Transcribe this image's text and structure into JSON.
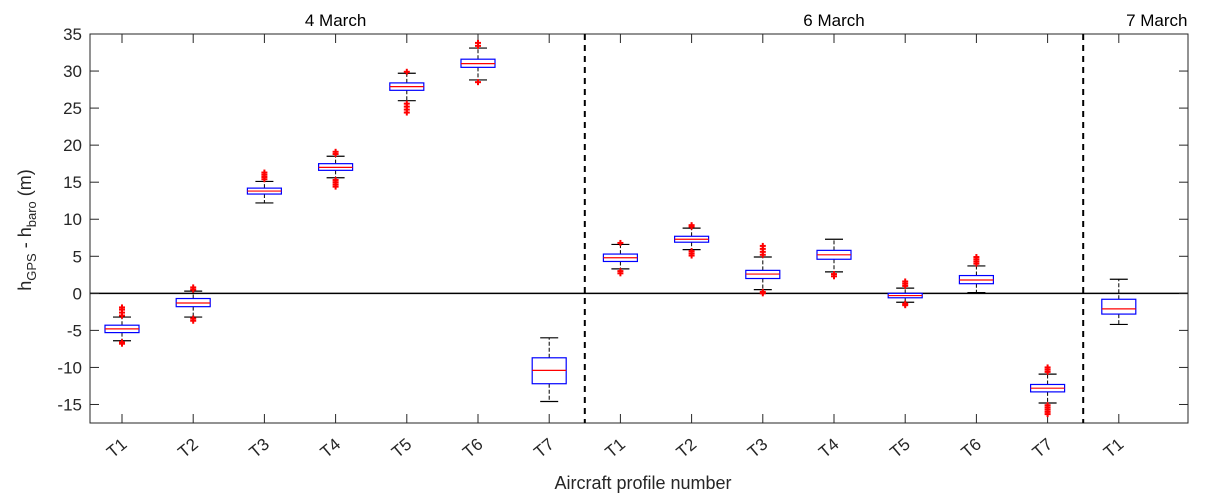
{
  "chart_data": {
    "type": "box",
    "xlabel": "Aircraft profile number",
    "ylabel_main": "h",
    "ylabel_sub1": "GPS",
    "ylabel_mid": " - h",
    "ylabel_sub2": "baro",
    "ylabel_unit": "(m)",
    "ylim": [
      -17.5,
      35
    ],
    "yticks": [
      -15,
      -10,
      -5,
      0,
      5,
      10,
      15,
      20,
      25,
      30,
      35
    ],
    "grid": false,
    "zero_line": true,
    "categories": [
      "T1",
      "T2",
      "T3",
      "T4",
      "T5",
      "T6",
      "T7",
      "T1",
      "T2",
      "T3",
      "T4",
      "T5",
      "T6",
      "T7",
      "T1"
    ],
    "groups": [
      {
        "label": "4 March",
        "count": 7
      },
      {
        "label": "6 March",
        "count": 7
      },
      {
        "label": "7 March",
        "count": 1
      }
    ],
    "boxes": [
      {
        "median": -4.8,
        "q1": -5.3,
        "q3": -4.3,
        "whisker_low": -6.4,
        "whisker_high": -3.2,
        "outliers_low": [
          -6.6,
          -6.8
        ],
        "outliers_high": [
          -3.0,
          -2.6,
          -2.2,
          -1.9
        ]
      },
      {
        "median": -1.3,
        "q1": -1.8,
        "q3": -0.7,
        "whisker_low": -3.2,
        "whisker_high": 0.3,
        "outliers_low": [
          -3.4,
          -3.7
        ],
        "outliers_high": [
          0.5,
          0.8
        ]
      },
      {
        "median": 13.8,
        "q1": 13.4,
        "q3": 14.2,
        "whisker_low": 12.2,
        "whisker_high": 15.1,
        "outliers_low": [],
        "outliers_high": [
          15.4,
          15.7,
          16.0,
          16.3
        ]
      },
      {
        "median": 17.0,
        "q1": 16.6,
        "q3": 17.5,
        "whisker_low": 15.6,
        "whisker_high": 18.5,
        "outliers_low": [
          15.3,
          15.0,
          14.7,
          14.4
        ],
        "outliers_high": [
          18.8,
          19.1
        ]
      },
      {
        "median": 27.9,
        "q1": 27.4,
        "q3": 28.4,
        "whisker_low": 26.0,
        "whisker_high": 29.7,
        "outliers_low": [
          25.6,
          25.2,
          24.8,
          24.4
        ],
        "outliers_high": [
          29.9
        ]
      },
      {
        "median": 31.0,
        "q1": 30.5,
        "q3": 31.6,
        "whisker_low": 28.8,
        "whisker_high": 33.1,
        "outliers_low": [
          28.5
        ],
        "outliers_high": [
          33.4,
          33.8
        ]
      },
      {
        "median": -10.4,
        "q1": -12.2,
        "q3": -8.7,
        "whisker_low": -14.6,
        "whisker_high": -6.0,
        "outliers_low": [],
        "outliers_high": []
      },
      {
        "median": 4.8,
        "q1": 4.3,
        "q3": 5.3,
        "whisker_low": 3.3,
        "whisker_high": 6.6,
        "outliers_low": [
          3.0,
          2.7
        ],
        "outliers_high": [
          6.8
        ]
      },
      {
        "median": 7.3,
        "q1": 6.9,
        "q3": 7.7,
        "whisker_low": 5.9,
        "whisker_high": 8.8,
        "outliers_low": [
          5.7,
          5.4,
          5.1
        ],
        "outliers_high": [
          9.0,
          9.2
        ]
      },
      {
        "median": 2.6,
        "q1": 2.0,
        "q3": 3.1,
        "whisker_low": 0.5,
        "whisker_high": 4.9,
        "outliers_low": [
          0.2,
          0.0
        ],
        "outliers_high": [
          5.2,
          5.6,
          6.0,
          6.4
        ]
      },
      {
        "median": 5.2,
        "q1": 4.6,
        "q3": 5.8,
        "whisker_low": 2.9,
        "whisker_high": 7.3,
        "outliers_low": [
          2.6,
          2.3
        ],
        "outliers_high": []
      },
      {
        "median": -0.3,
        "q1": -0.6,
        "q3": 0.0,
        "whisker_low": -1.2,
        "whisker_high": 0.7,
        "outliers_low": [
          -1.4,
          -1.6
        ],
        "outliers_high": [
          1.0,
          1.3,
          1.6
        ]
      },
      {
        "median": 1.8,
        "q1": 1.3,
        "q3": 2.4,
        "whisker_low": 0.1,
        "whisker_high": 3.7,
        "outliers_low": [],
        "outliers_high": [
          4.0,
          4.3,
          4.6,
          4.9
        ]
      },
      {
        "median": -12.8,
        "q1": -13.3,
        "q3": -12.3,
        "whisker_low": -14.8,
        "whisker_high": -10.9,
        "outliers_low": [
          -15.1,
          -15.4,
          -15.7,
          -16.0,
          -16.3
        ],
        "outliers_high": [
          -10.6,
          -10.3,
          -10.0
        ]
      },
      {
        "median": -2.1,
        "q1": -2.8,
        "q3": -0.8,
        "whisker_low": -4.2,
        "whisker_high": 1.9,
        "outliers_low": [],
        "outliers_high": []
      }
    ],
    "colors": {
      "box": "#0000ff",
      "median": "#ff0000",
      "outlier": "#ff0000",
      "whisker": "#000000",
      "separator": "#000000"
    }
  }
}
